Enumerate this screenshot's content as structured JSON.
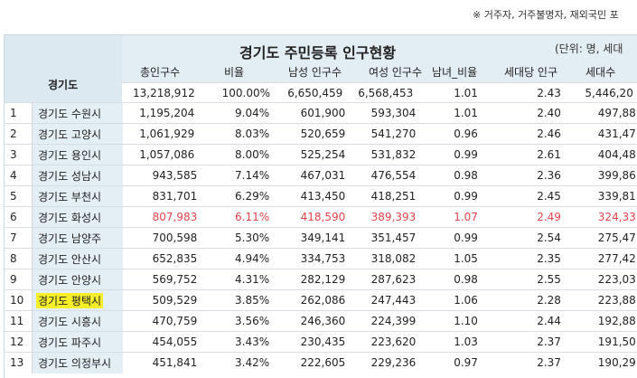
{
  "note": "※ 거주자, 거주불명자, 재외국민 포",
  "sheet": {
    "title": "경기도 주민등록 인구현황",
    "unit": "(단위: 명, 세대",
    "region_header": "경기도",
    "columns": [
      "총인구수",
      "비율",
      "남성 인구수",
      "여성 인구수",
      "남녀_비율",
      "세대당 인구",
      "세대수"
    ],
    "total": [
      "13,218,912",
      "100.00%",
      "6,650,459",
      "6,568,453",
      "1.01",
      "2.43",
      "5,446,20"
    ],
    "rows": [
      {
        "no": "1",
        "name": "경기도 수원시",
        "vals": [
          "1,195,204",
          "9.04%",
          "601,900",
          "593,304",
          "1.01",
          "2.40",
          "497,88"
        ]
      },
      {
        "no": "2",
        "name": "경기도 고양시",
        "vals": [
          "1,061,929",
          "8.03%",
          "520,659",
          "541,270",
          "0.96",
          "2.46",
          "431,47"
        ]
      },
      {
        "no": "3",
        "name": "경기도 용인시",
        "vals": [
          "1,057,086",
          "8.00%",
          "525,254",
          "531,832",
          "0.99",
          "2.61",
          "404,48"
        ]
      },
      {
        "no": "4",
        "name": "경기도 성남시",
        "vals": [
          "943,585",
          "7.14%",
          "467,031",
          "476,554",
          "0.98",
          "2.36",
          "399,86"
        ]
      },
      {
        "no": "5",
        "name": "경기도 부천시",
        "vals": [
          "831,701",
          "6.29%",
          "413,450",
          "418,251",
          "0.99",
          "2.45",
          "339,81"
        ]
      },
      {
        "no": "6",
        "name": "경기도 화성시",
        "vals": [
          "807,983",
          "6.11%",
          "418,590",
          "389,393",
          "1.07",
          "2.49",
          "324,33"
        ]
      },
      {
        "no": "7",
        "name": "경기도 남양주",
        "vals": [
          "700,598",
          "5.30%",
          "349,141",
          "351,457",
          "0.99",
          "2.54",
          "275,47"
        ]
      },
      {
        "no": "8",
        "name": "경기도 안산시",
        "vals": [
          "652,835",
          "4.94%",
          "334,753",
          "318,082",
          "1.05",
          "2.35",
          "277,42"
        ]
      },
      {
        "no": "9",
        "name": "경기도 안양시",
        "vals": [
          "569,752",
          "4.31%",
          "282,129",
          "287,623",
          "0.98",
          "2.55",
          "223,03"
        ]
      },
      {
        "no": "10",
        "name": "경기도 평택시",
        "vals": [
          "509,529",
          "3.85%",
          "262,086",
          "247,443",
          "1.06",
          "2.28",
          "223,88"
        ]
      },
      {
        "no": "11",
        "name": "경기도 시흥시",
        "vals": [
          "470,759",
          "3.56%",
          "246,360",
          "224,399",
          "1.10",
          "2.44",
          "192,88"
        ]
      },
      {
        "no": "12",
        "name": "경기도 파주시",
        "vals": [
          "454,055",
          "3.43%",
          "230,435",
          "223,620",
          "1.03",
          "2.37",
          "191,50"
        ]
      },
      {
        "no": "13",
        "name": "경기도 의정부시",
        "vals": [
          "451,841",
          "3.42%",
          "222,605",
          "229,236",
          "0.97",
          "2.37",
          "190,29"
        ]
      }
    ]
  },
  "colors": {
    "header_bg": "#e3edf4",
    "name_bg": "#e4eef5",
    "highlight": "#f7ee2a",
    "red_text": "#e0454b"
  }
}
